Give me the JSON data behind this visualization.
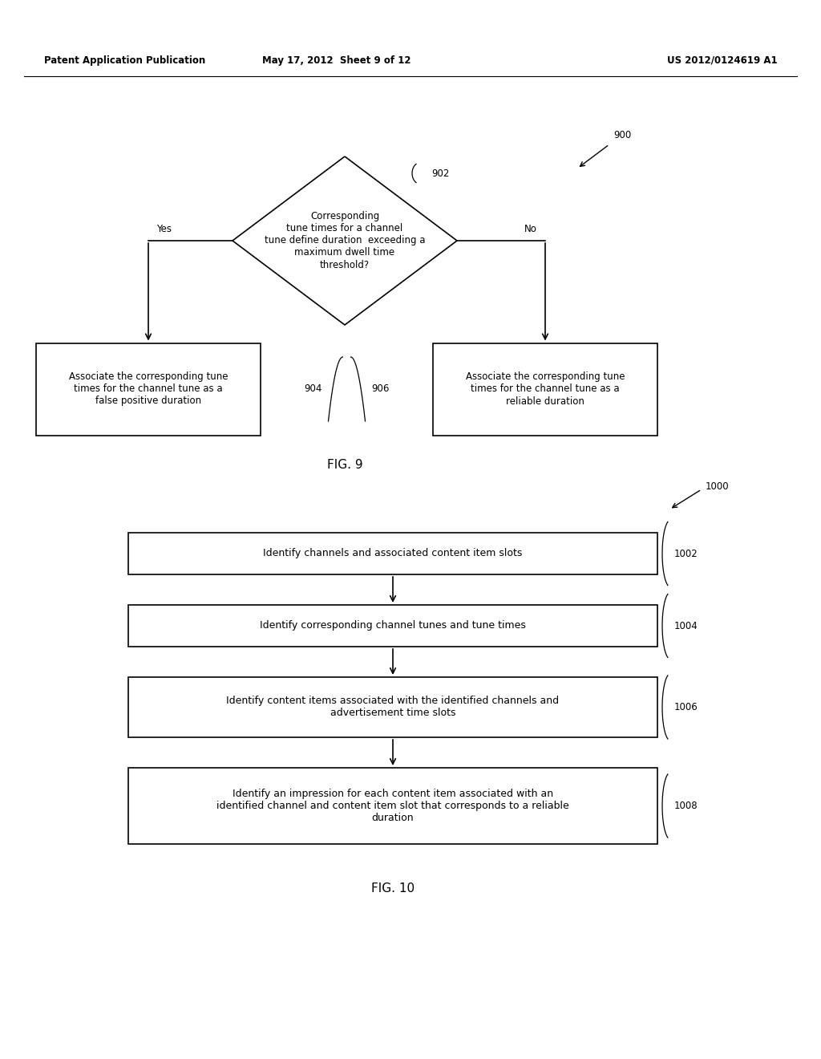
{
  "header_left": "Patent Application Publication",
  "header_mid": "May 17, 2012  Sheet 9 of 12",
  "header_right": "US 2012/0124619 A1",
  "fig9_label": "FIG. 9",
  "fig10_label": "FIG. 10",
  "fig9_ref": "900",
  "fig9_diamond_ref": "902",
  "fig9_left_ref": "904",
  "fig9_right_ref": "906",
  "fig9_diamond_text": "Corresponding\ntune times for a channel\ntune define duration  exceeding a\nmaximum dwell time\nthreshold?",
  "fig9_yes": "Yes",
  "fig9_no": "No",
  "fig9_left_box_text": "Associate the corresponding tune\ntimes for the channel tune as a\nfalse positive duration",
  "fig9_right_box_text": "Associate the corresponding tune\ntimes for the channel tune as a\nreliable duration",
  "fig10_ref": "1000",
  "fig10_box1_ref": "1002",
  "fig10_box2_ref": "1004",
  "fig10_box3_ref": "1006",
  "fig10_box4_ref": "1008",
  "fig10_box1_text": "Identify channels and associated content item slots",
  "fig10_box2_text": "Identify corresponding channel tunes and tune times",
  "fig10_box3_text": "Identify content items associated with the identified channels and\nadvertisement time slots",
  "fig10_box4_text": "Identify an impression for each content item associated with an\nidentified channel and content item slot that corresponds to a reliable\nduration",
  "bg_color": "#ffffff",
  "text_color": "#000000",
  "box_edge_color": "#000000",
  "line_color": "#000000"
}
